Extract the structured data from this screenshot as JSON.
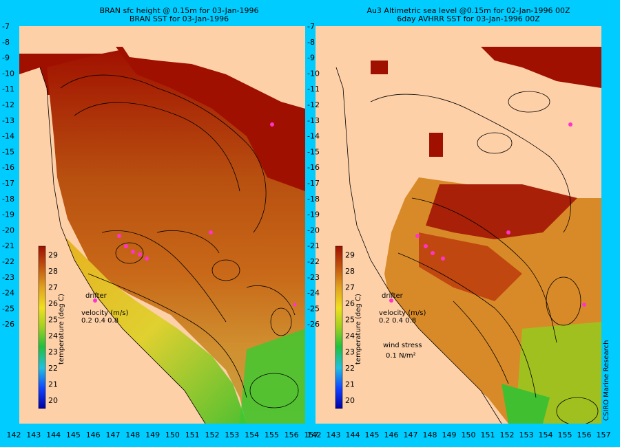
{
  "left_panel": {
    "title_line1": "BRAN sfc height @ 0.15m for 03-Jan-1996",
    "title_line2": "BRAN SST for 03-Jan-1996",
    "legend": {
      "drifter": "drifter",
      "velocity": "velocity (m/s)",
      "velocity_scale": "0.2 0.4 0.8"
    }
  },
  "right_panel": {
    "title_line1": "Au3 Altimetric sea level  @0.15m  for 02-Jan-1996 00Z",
    "title_line2": "6day AVHRR SST for 03-Jan-1996 00Z",
    "legend": {
      "drifter": "drifter",
      "velocity": "velocity (m/s)",
      "velocity_scale": "0.2 0.4 0.8",
      "wind_stress": "wind stress",
      "wind_stress_value": "0.1 N/m²"
    }
  },
  "colorbar": {
    "label": "temperature (deg C)",
    "ticks": [
      "20",
      "21",
      "22",
      "23",
      "24",
      "25",
      "26",
      "27",
      "28",
      "29"
    ]
  },
  "axes": {
    "y_ticks": [
      "-7",
      "-8",
      "-9",
      "-10",
      "-11",
      "-12",
      "-13",
      "-14",
      "-15",
      "-16",
      "-17",
      "-18",
      "-19",
      "-20",
      "-21",
      "-22",
      "-23",
      "-24",
      "-25",
      "-26"
    ],
    "x_ticks": [
      "142",
      "143",
      "144",
      "145",
      "146",
      "147",
      "148",
      "149",
      "150",
      "151",
      "152",
      "153",
      "154",
      "155",
      "156",
      "157"
    ]
  },
  "credit": "CSIRO Marine Research",
  "colors": {
    "background": "#00ccff",
    "land": "#fdd0a8",
    "warm_sea": "#b84a10",
    "hot_sea": "#a01000",
    "coastal": "#e8c020",
    "cool": "#30c030",
    "drifter": "#ff33cc"
  }
}
